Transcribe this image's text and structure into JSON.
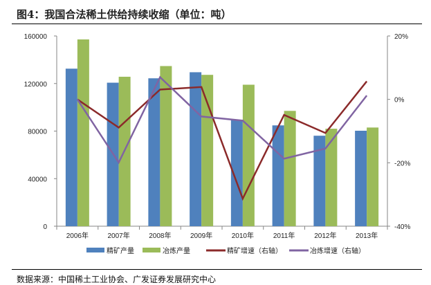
{
  "title": "图4：我国合法稀土供给持续收缩（单位：吨）",
  "source": "数据来源：中国稀土工业协会、广发证券发展研究中心",
  "chart_data": {
    "type": "bar",
    "title": "图4：我国合法稀土供给持续收缩（单位：吨）",
    "categories": [
      "2006年",
      "2007年",
      "2008年",
      "2009年",
      "2010年",
      "2011年",
      "2012年",
      "2013年"
    ],
    "y_left": {
      "ylim": [
        0,
        160000
      ],
      "ticks": [
        "0",
        "40000",
        "80000",
        "120000",
        "160000"
      ],
      "tick_values": [
        0,
        40000,
        80000,
        120000,
        160000
      ]
    },
    "y_right": {
      "ylim": [
        -40,
        20
      ],
      "unit": "%",
      "ticks": [
        "-40%",
        "-20%",
        "0%",
        "20%"
      ],
      "tick_values": [
        -40,
        -20,
        0,
        20
      ]
    },
    "grid": false,
    "legend_position": "bottom",
    "series": [
      {
        "name": "精矿产量",
        "type": "bar",
        "axis": "left",
        "color": "#4f81bd",
        "values": [
          132500,
          120700,
          124400,
          129500,
          89400,
          84800,
          76100,
          80300
        ]
      },
      {
        "name": "冶炼产量",
        "type": "bar",
        "axis": "left",
        "color": "#9bbb59",
        "values": [
          157100,
          125700,
          134700,
          127300,
          119000,
          97000,
          82000,
          83000
        ]
      },
      {
        "name": "精矿增速（右轴）",
        "type": "line",
        "axis": "right",
        "color": "#8b2a2a",
        "values": [
          0,
          -8.9,
          3.1,
          3.9,
          -31.3,
          -4.9,
          -10.6,
          5.7
        ]
      },
      {
        "name": "冶炼增速（右轴）",
        "type": "line",
        "axis": "right",
        "color": "#8064a2",
        "values": [
          0,
          -19.9,
          7.0,
          -5.4,
          -6.7,
          -18.7,
          -15.5,
          1.2
        ]
      }
    ]
  }
}
